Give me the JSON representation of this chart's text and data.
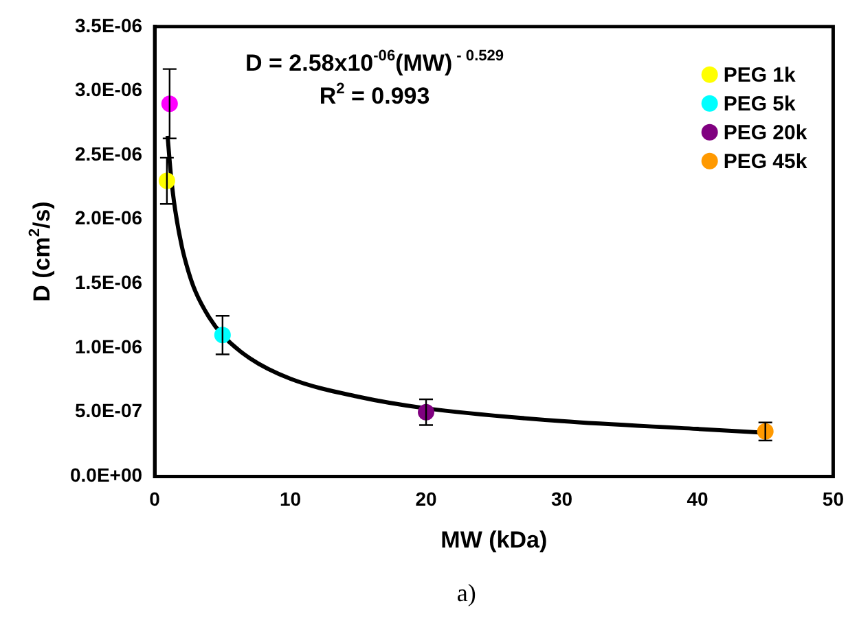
{
  "chart_data": {
    "type": "scatter",
    "xlabel": "MW (kDa)",
    "ylabel": "D (cm$^{2}$/s)",
    "xlim": [
      0,
      50
    ],
    "xticks": [
      0,
      10,
      20,
      30,
      40,
      50
    ],
    "ylim": [
      0,
      3.5e-06
    ],
    "yticks": [
      {
        "value": 0,
        "label": "0.0E+00"
      },
      {
        "value": 5e-07,
        "label": "5.0E-07"
      },
      {
        "value": 1e-06,
        "label": "1.0E-06"
      },
      {
        "value": 1.5e-06,
        "label": "1.5E-06"
      },
      {
        "value": 2e-06,
        "label": "2.0E-06"
      },
      {
        "value": 2.5e-06,
        "label": "2.5E-06"
      },
      {
        "value": 3e-06,
        "label": "3.0E-06"
      },
      {
        "value": 3.5e-06,
        "label": "3.5E-06"
      }
    ],
    "grid": false,
    "legend": "top right",
    "marker": "circle",
    "annotations": [
      "D = 2.58x10$^{-06}$(MW)$^{ - 0.529}$",
      "R$^{2}$ = 0.993",
      "a)"
    ],
    "series": [
      {
        "color": "#ff00ff",
        "x": [
          1.1
        ],
        "values": [
          2.9e-06
        ],
        "errors": [
          2.7e-07
        ]
      },
      {
        "name": "PEG 1k",
        "color": "#ffff00",
        "x": [
          0.9
        ],
        "values": [
          2.3e-06
        ],
        "errors": [
          1.8e-07
        ]
      },
      {
        "name": "PEG 5k",
        "color": "#00ffff",
        "x": [
          5
        ],
        "values": [
          1.1e-06
        ],
        "errors": [
          1.5e-07
        ]
      },
      {
        "name": "PEG 20k",
        "color": "#800080",
        "x": [
          20
        ],
        "values": [
          5e-07
        ],
        "errors": [
          1e-07
        ]
      },
      {
        "name": "PEG 45k",
        "color": "#ff9900",
        "x": [
          45
        ],
        "values": [
          3.5e-07
        ],
        "errors": [
          7e-08
        ]
      },
      {
        "type": "line",
        "color": "#000000",
        "marker": "none",
        "line_style": "solid",
        "x": [
          0.95,
          1.2,
          1.5,
          2,
          2.5,
          3,
          4,
          5,
          7,
          10,
          15,
          20,
          30,
          40,
          45
        ],
        "values": [
          2.65e-06,
          2.34e-06,
          2.08e-06,
          1.79e-06,
          1.59e-06,
          1.44e-06,
          1.24e-06,
          1.1e-06,
          9.2e-07,
          7.6e-07,
          6.2e-07,
          5.3e-07,
          4.3e-07,
          3.7e-07,
          3.4e-07
        ]
      }
    ]
  }
}
